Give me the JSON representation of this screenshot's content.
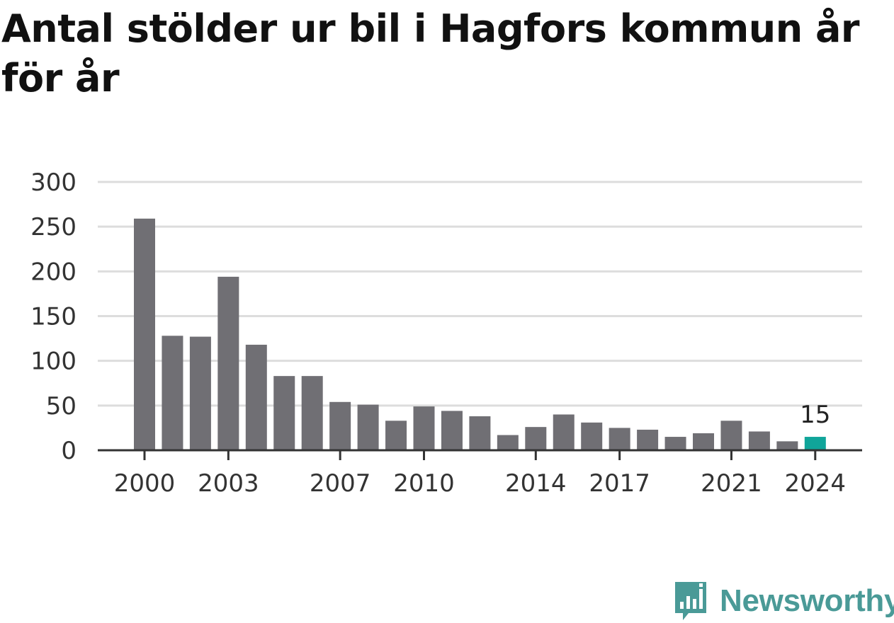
{
  "chart_data": {
    "type": "bar",
    "title": "Antal stölder ur bil i Hagfors kommun år för år",
    "x": [
      2000,
      2001,
      2002,
      2003,
      2004,
      2005,
      2006,
      2007,
      2008,
      2009,
      2010,
      2011,
      2012,
      2013,
      2014,
      2015,
      2016,
      2017,
      2018,
      2019,
      2020,
      2021,
      2022,
      2023,
      2024
    ],
    "values": [
      259,
      128,
      127,
      194,
      118,
      83,
      83,
      54,
      51,
      33,
      49,
      44,
      38,
      17,
      26,
      40,
      31,
      25,
      23,
      15,
      19,
      33,
      21,
      10,
      15
    ],
    "x_tick_labels": [
      "2000",
      "2003",
      "2007",
      "2010",
      "2014",
      "2017",
      "2021",
      "2024"
    ],
    "y_ticks": [
      0,
      50,
      100,
      150,
      200,
      250,
      300
    ],
    "ylim": [
      0,
      300
    ],
    "highlight": {
      "x": 2024,
      "label": "15"
    },
    "colors": {
      "bar": "#706f74",
      "highlight": "#10a59a",
      "grid": "#dddddd",
      "axis": "#333333"
    },
    "grid": true
  },
  "brand": {
    "name": "Newsworthy",
    "icon": "newsworthy-logo-icon",
    "color": "#4a9a97"
  }
}
